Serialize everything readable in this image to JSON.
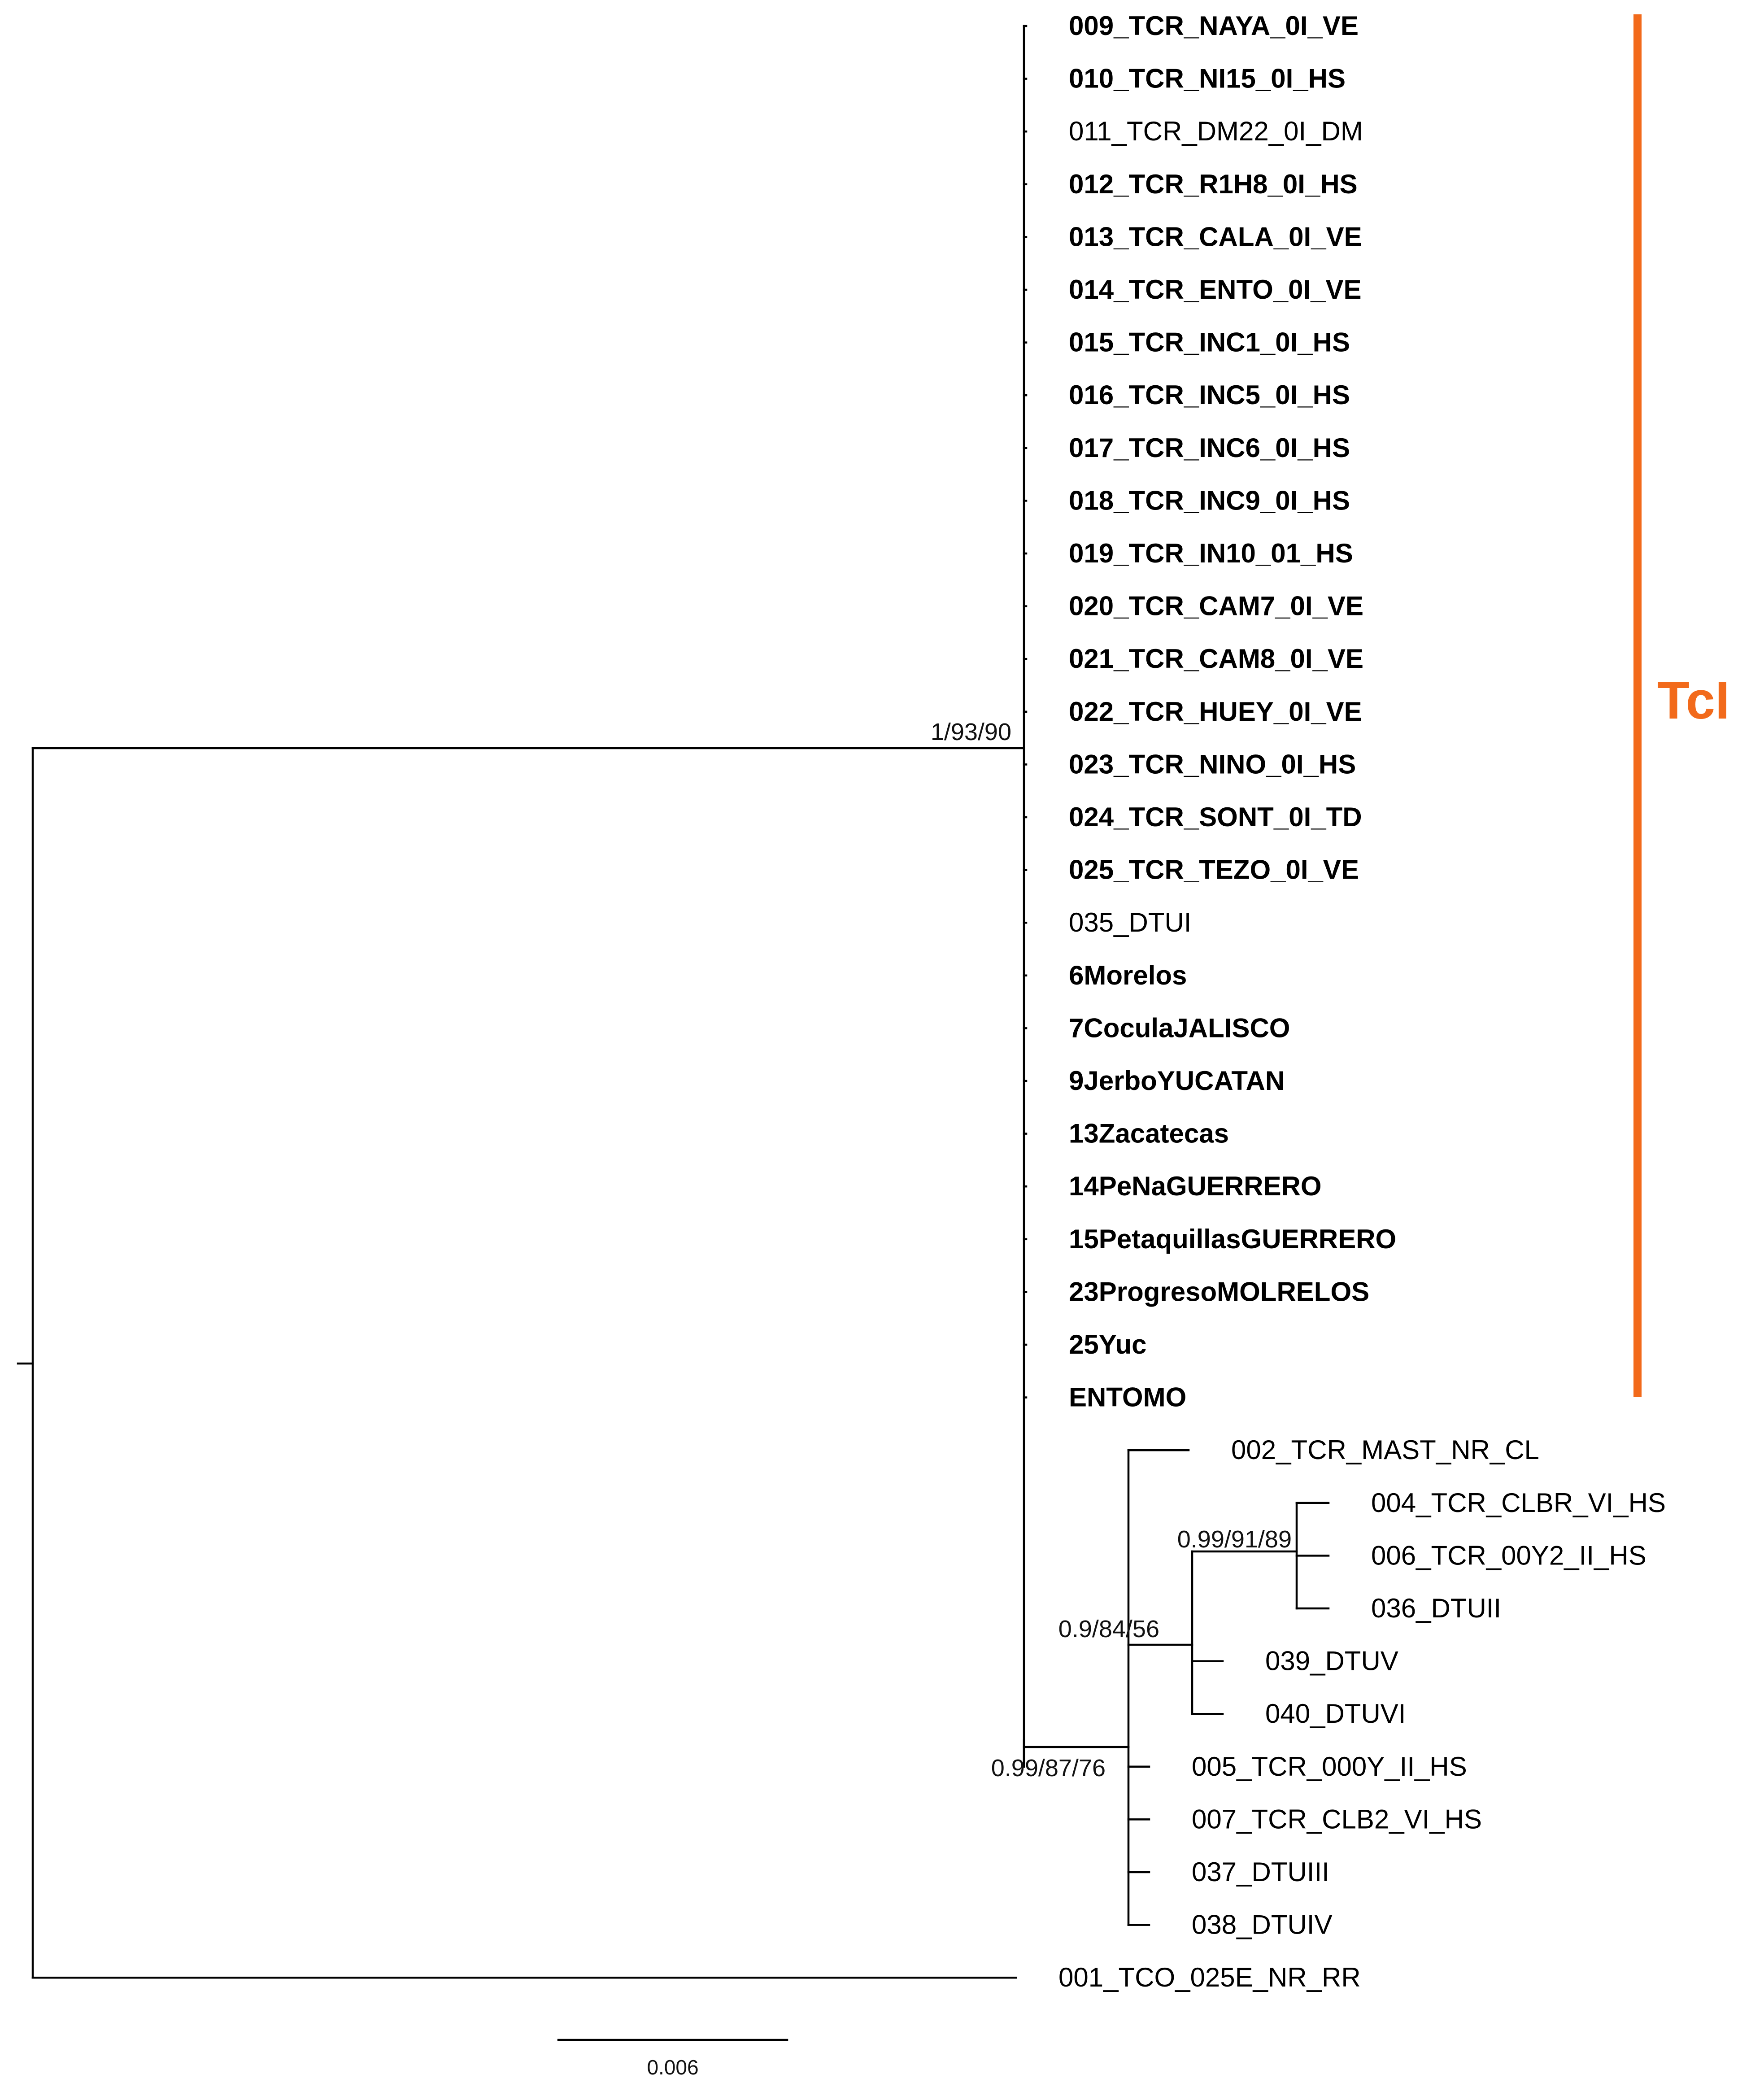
{
  "figure": {
    "type": "phylogenetic-tree",
    "accent_color": "#f26a1b"
  },
  "tree": {
    "taxa": [
      {
        "label": "009_TCR_NAYA_0I_VE",
        "bold": true
      },
      {
        "label": "010_TCR_NI15_0I_HS",
        "bold": true
      },
      {
        "label": "011_TCR_DM22_0I_DM",
        "bold": false
      },
      {
        "label": "012_TCR_R1H8_0I_HS",
        "bold": true
      },
      {
        "label": "013_TCR_CALA_0I_VE",
        "bold": true
      },
      {
        "label": "014_TCR_ENTO_0I_VE",
        "bold": true
      },
      {
        "label": "015_TCR_INC1_0I_HS",
        "bold": true
      },
      {
        "label": "016_TCR_INC5_0I_HS",
        "bold": true
      },
      {
        "label": "017_TCR_INC6_0I_HS",
        "bold": true
      },
      {
        "label": "018_TCR_INC9_0I_HS",
        "bold": true
      },
      {
        "label": "019_TCR_IN10_01_HS",
        "bold": true
      },
      {
        "label": "020_TCR_CAM7_0I_VE",
        "bold": true
      },
      {
        "label": "021_TCR_CAM8_0I_VE",
        "bold": true
      },
      {
        "label": "022_TCR_HUEY_0I_VE",
        "bold": true
      },
      {
        "label": "023_TCR_NINO_0I_HS",
        "bold": true
      },
      {
        "label": "024_TCR_SONT_0I_TD",
        "bold": true
      },
      {
        "label": "025_TCR_TEZO_0I_VE",
        "bold": true
      },
      {
        "label": "035_DTUI",
        "bold": false
      },
      {
        "label": "6Morelos",
        "bold": true
      },
      {
        "label": "7CoculaJALISCO",
        "bold": true
      },
      {
        "label": "9JerboYUCATAN",
        "bold": true
      },
      {
        "label": "13Zacatecas",
        "bold": true
      },
      {
        "label": "14PeNaGUERRERO",
        "bold": true
      },
      {
        "label": "15PetaquillasGUERRERO",
        "bold": true
      },
      {
        "label": "23ProgresoMOLRELOS",
        "bold": true
      },
      {
        "label": "25Yuc",
        "bold": true
      },
      {
        "label": "ENTOMO",
        "bold": true
      },
      {
        "label": "002_TCR_MAST_NR_CL",
        "bold": false
      },
      {
        "label": "004_TCR_CLBR_VI_HS",
        "bold": false
      },
      {
        "label": "006_TCR_00Y2_II_HS",
        "bold": false
      },
      {
        "label": "036_DTUII",
        "bold": false
      },
      {
        "label": "039_DTUV",
        "bold": false
      },
      {
        "label": "040_DTUVI",
        "bold": false
      },
      {
        "label": "005_TCR_000Y_II_HS",
        "bold": false
      },
      {
        "label": "007_TCR_CLB2_VI_HS",
        "bold": false
      },
      {
        "label": "037_DTUIII",
        "bold": false
      },
      {
        "label": "038_DTUIV",
        "bold": false
      },
      {
        "label": "001_TCO_025E_NR_RR",
        "bold": false
      }
    ],
    "support_values": {
      "tci_clade": "1/93/90",
      "other_dtu_clade": "0.99/87/76",
      "dtu_ii_vi_clade": "0.9/84/56",
      "dtu_ii_clade": "0.99/91/89"
    },
    "clade_label": "TcI",
    "clade_label_display": "TcI",
    "scale_bar": "0.006"
  }
}
